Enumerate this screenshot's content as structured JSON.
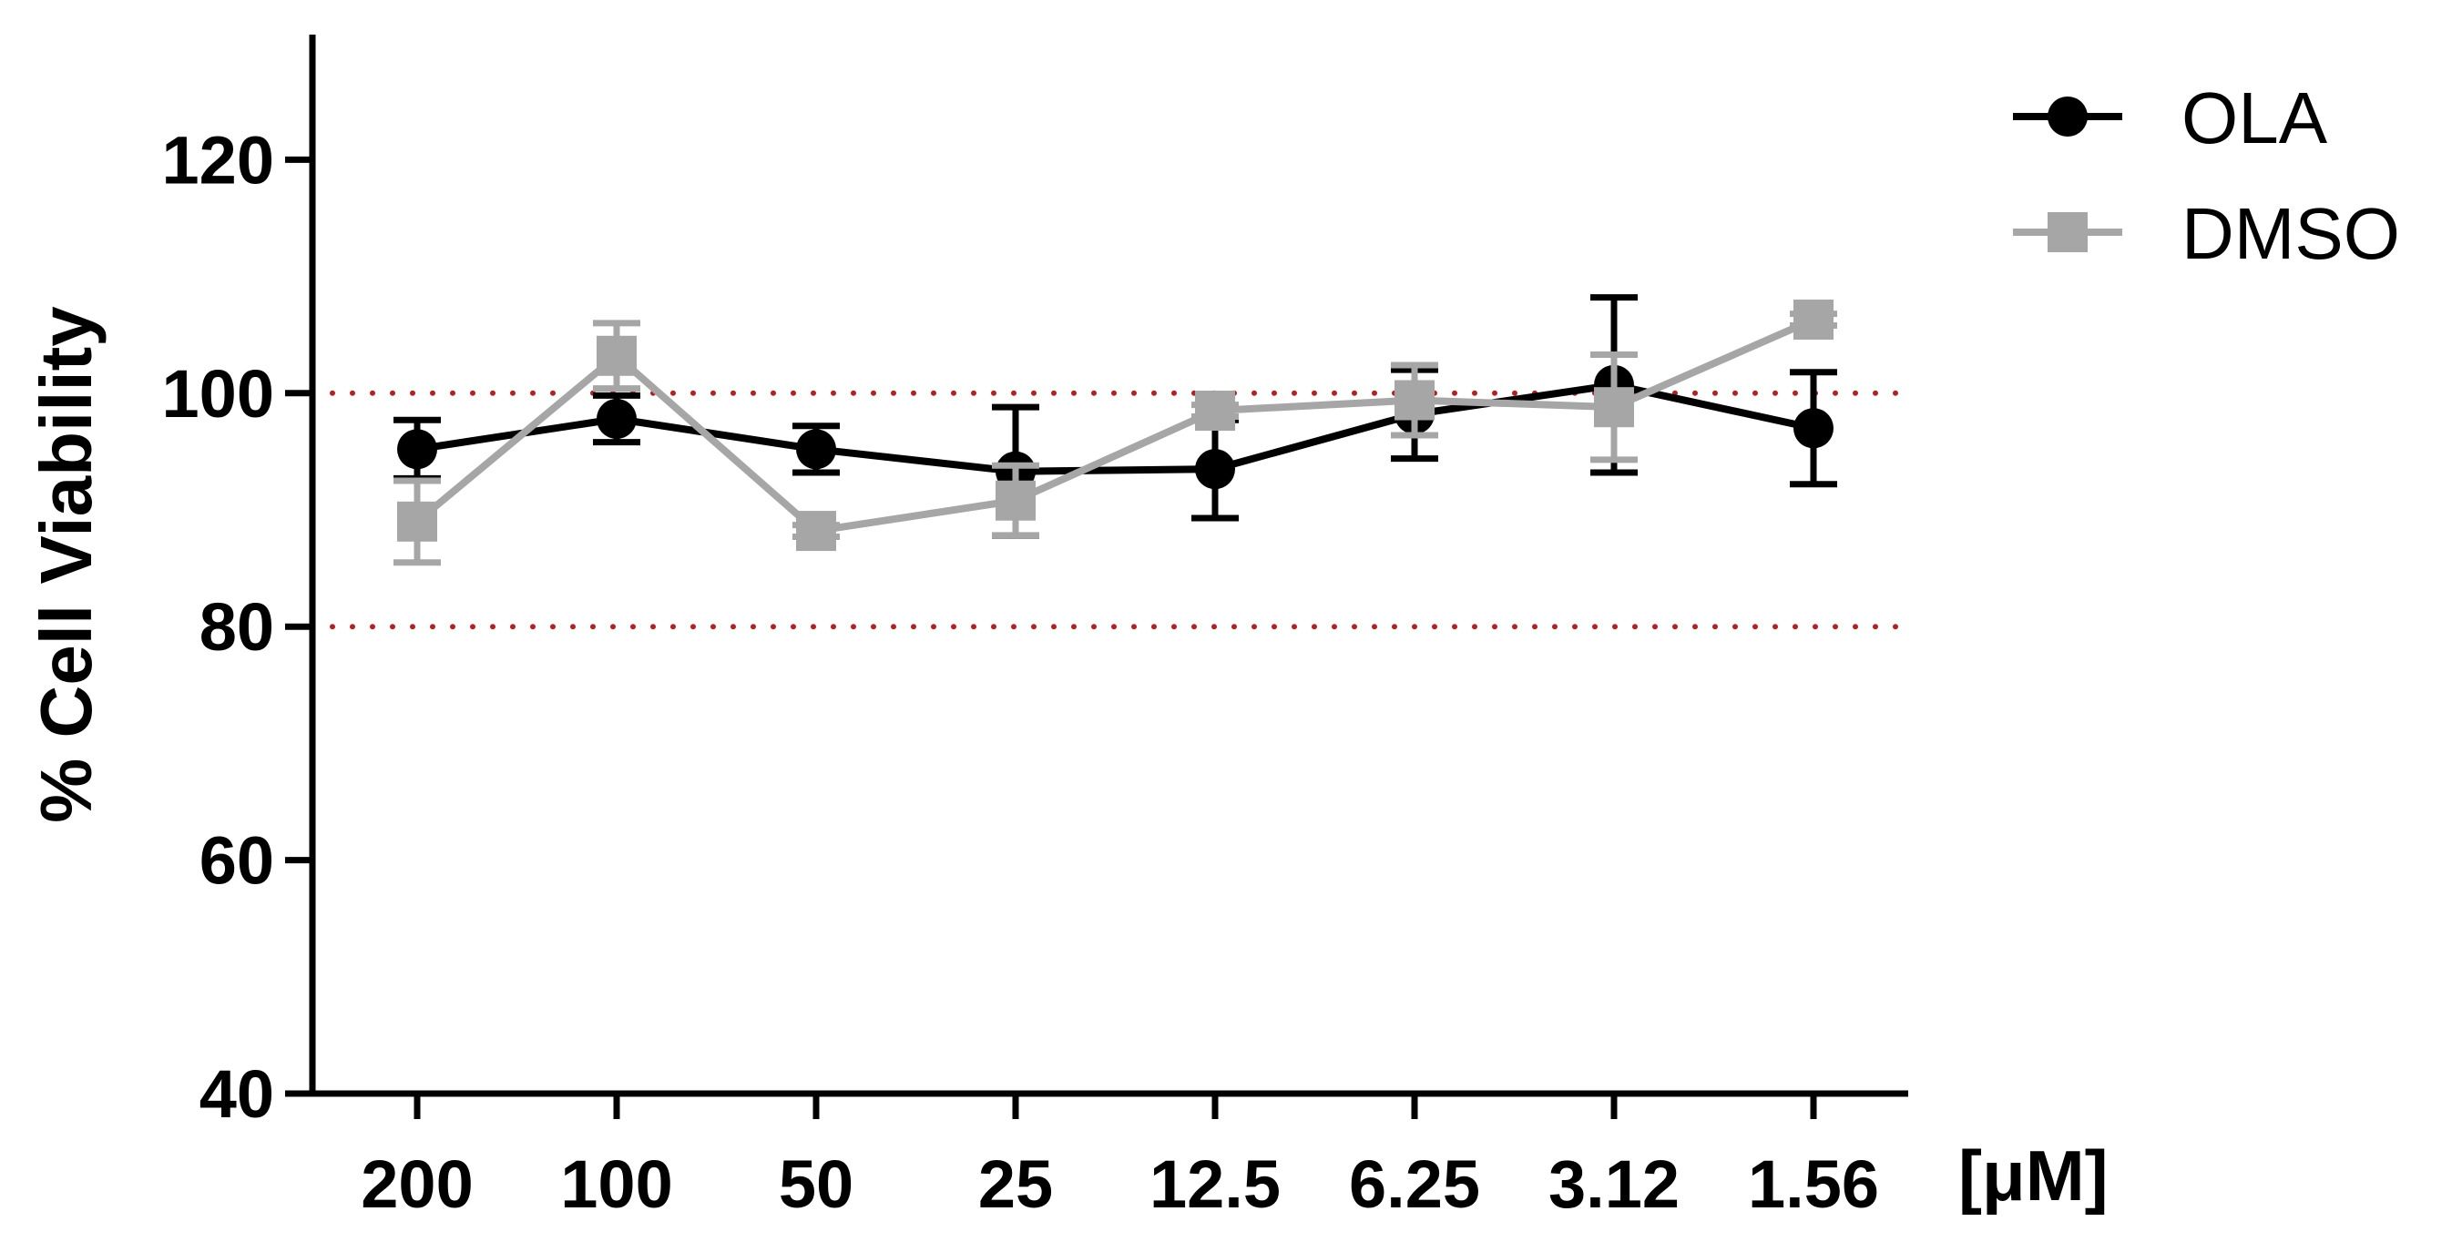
{
  "chart_data": {
    "type": "line",
    "title": "",
    "xlabel": "[μM]",
    "ylabel": "% Cell Viability",
    "categories": [
      "200",
      "100",
      "50",
      "25",
      "12.5",
      "6.25",
      "3.12",
      "1.56"
    ],
    "ylim": [
      40,
      130
    ],
    "yticks": [
      40,
      60,
      80,
      100,
      120
    ],
    "grid": false,
    "legend_position": "top-right",
    "reference_lines": [
      {
        "y": 100,
        "style": "dotted",
        "color": "#b22222"
      },
      {
        "y": 80,
        "style": "dotted",
        "color": "#b22222"
      }
    ],
    "series": [
      {
        "name": "OLA",
        "marker": "circle",
        "color": "#000000",
        "values": [
          95.2,
          97.8,
          95.2,
          93.3,
          93.5,
          98.2,
          100.7,
          97.0
        ],
        "error": [
          2.5,
          2.0,
          2.0,
          5.5,
          4.2,
          3.8,
          7.5,
          4.8
        ]
      },
      {
        "name": "DMSO",
        "marker": "square",
        "color": "#a6a6a6",
        "values": [
          89.0,
          103.2,
          88.2,
          90.8,
          98.5,
          99.4,
          98.8,
          106.3
        ],
        "error": [
          3.5,
          2.8,
          0.5,
          3.0,
          0.5,
          3.0,
          4.5,
          0.5
        ]
      }
    ]
  }
}
